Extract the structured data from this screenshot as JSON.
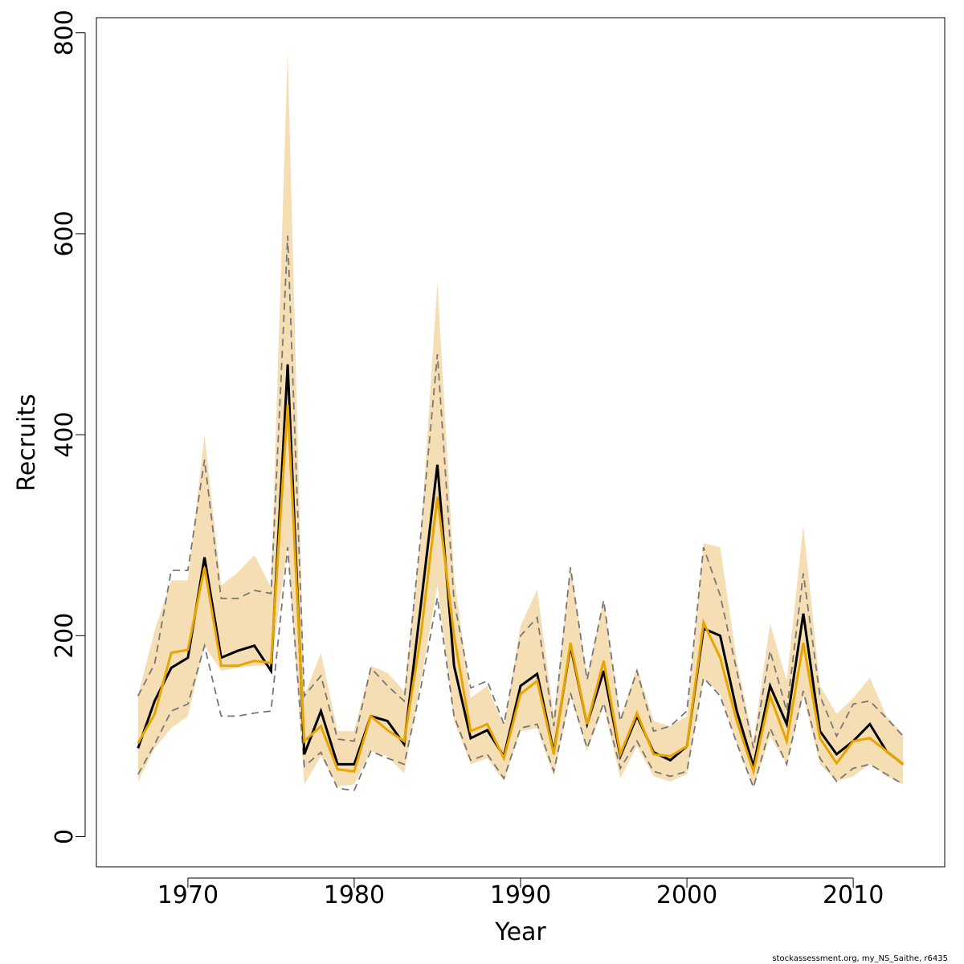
{
  "chart_data": {
    "type": "line",
    "xlabel": "Year",
    "ylabel": "Recruits",
    "footer": "stockassessment.org, my_NS_Saithe, r6435",
    "xlim": [
      1964.5,
      2015.5
    ],
    "ylim": [
      -30,
      815
    ],
    "x_ticks": [
      1970,
      1980,
      1990,
      2000,
      2010
    ],
    "y_ticks": [
      0,
      200,
      400,
      600,
      800
    ],
    "grid": false,
    "colors": {
      "band": "#f5deb3",
      "estimate": "#e8a500",
      "reference": "#000000",
      "reference_ci": "#777777"
    },
    "x": [
      1967,
      1968,
      1969,
      1970,
      1971,
      1972,
      1973,
      1974,
      1975,
      1976,
      1977,
      1978,
      1979,
      1980,
      1981,
      1982,
      1983,
      1984,
      1985,
      1986,
      1987,
      1988,
      1989,
      1990,
      1991,
      1992,
      1993,
      1994,
      1995,
      1996,
      1997,
      1998,
      1999,
      2000,
      2001,
      2002,
      2003,
      2004,
      2005,
      2006,
      2007,
      2008,
      2009,
      2010,
      2011,
      2012,
      2013
    ],
    "series": [
      {
        "role": "band_low",
        "values": [
          55,
          88,
          108,
          120,
          190,
          165,
          168,
          170,
          170,
          290,
          52,
          80,
          50,
          52,
          85,
          80,
          63,
          155,
          250,
          115,
          72,
          78,
          55,
          105,
          108,
          60,
          140,
          85,
          130,
          58,
          90,
          60,
          55,
          62,
          158,
          142,
          92,
          48,
          100,
          72,
          140,
          72,
          55,
          60,
          72,
          60,
          52
        ]
      },
      {
        "role": "band_high",
        "values": [
          140,
          205,
          255,
          255,
          400,
          250,
          263,
          280,
          248,
          782,
          140,
          183,
          105,
          105,
          170,
          163,
          145,
          300,
          552,
          260,
          138,
          150,
          110,
          210,
          246,
          120,
          268,
          160,
          236,
          118,
          168,
          115,
          110,
          120,
          292,
          288,
          175,
          95,
          212,
          155,
          310,
          150,
          122,
          138,
          158,
          120,
          102
        ]
      },
      {
        "role": "estimate",
        "values": [
          93,
          122,
          183,
          186,
          268,
          170,
          170,
          175,
          173,
          430,
          95,
          110,
          67,
          65,
          120,
          106,
          95,
          200,
          338,
          200,
          105,
          112,
          78,
          142,
          155,
          82,
          193,
          112,
          175,
          82,
          123,
          82,
          80,
          90,
          213,
          178,
          115,
          65,
          140,
          95,
          193,
          98,
          73,
          95,
          98,
          85,
          72
        ]
      },
      {
        "role": "reference",
        "values": [
          88,
          135,
          168,
          178,
          278,
          178,
          185,
          190,
          165,
          470,
          82,
          125,
          72,
          72,
          120,
          115,
          92,
          230,
          370,
          170,
          98,
          106,
          80,
          150,
          162,
          84,
          190,
          112,
          165,
          80,
          120,
          84,
          76,
          90,
          207,
          200,
          125,
          70,
          150,
          112,
          222,
          105,
          82,
          95,
          112,
          85,
          72
        ]
      },
      {
        "role": "reference_lower",
        "values": [
          62,
          92,
          125,
          132,
          190,
          120,
          120,
          123,
          125,
          288,
          70,
          84,
          48,
          46,
          85,
          78,
          72,
          148,
          238,
          120,
          76,
          82,
          58,
          108,
          112,
          65,
          143,
          88,
          133,
          68,
          95,
          65,
          60,
          65,
          158,
          140,
          93,
          49,
          108,
          72,
          145,
          78,
          55,
          68,
          72,
          62,
          52
        ]
      },
      {
        "role": "reference_upper",
        "values": [
          140,
          172,
          265,
          265,
          375,
          237,
          237,
          245,
          242,
          598,
          140,
          160,
          97,
          95,
          168,
          150,
          135,
          300,
          480,
          235,
          148,
          155,
          112,
          200,
          218,
          110,
          268,
          156,
          235,
          115,
          165,
          105,
          110,
          125,
          288,
          240,
          165,
          88,
          185,
          125,
          262,
          140,
          100,
          132,
          135,
          118,
          100
        ]
      }
    ]
  }
}
